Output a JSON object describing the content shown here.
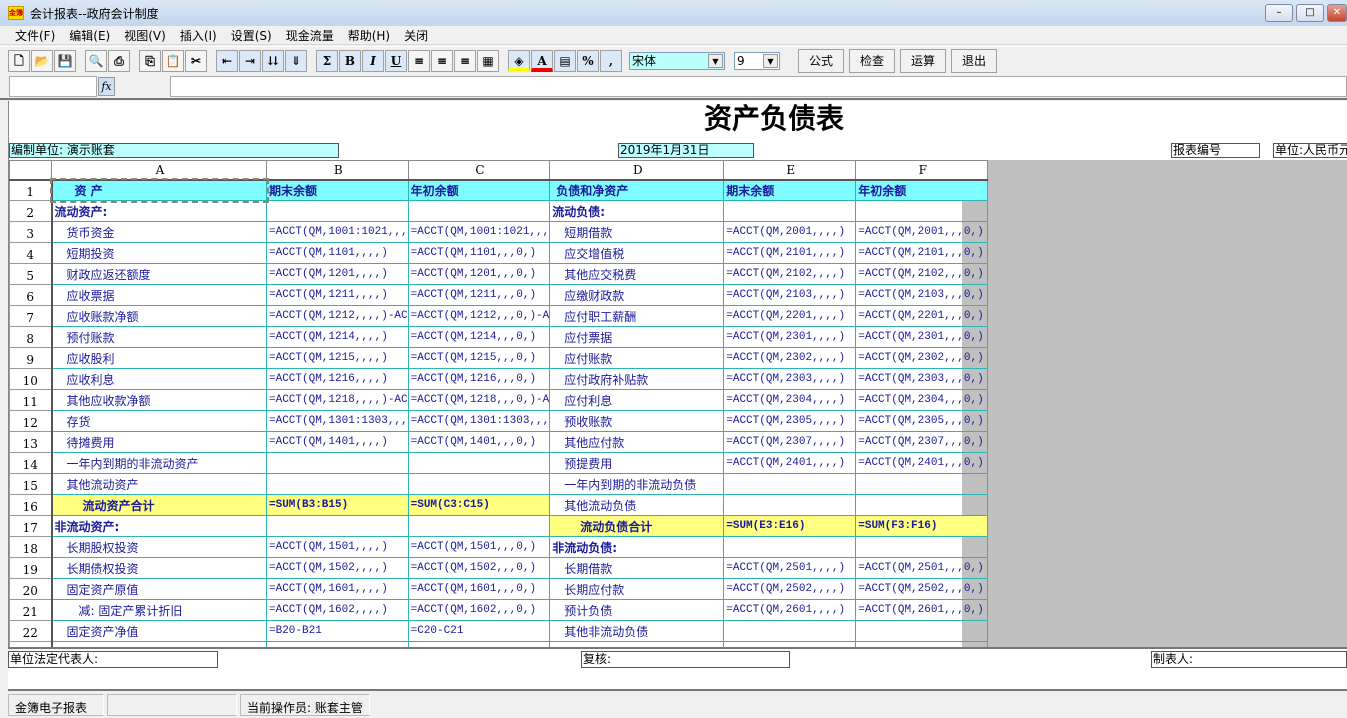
{
  "window": {
    "title": "会计报表--政府会计制度",
    "icon_text": "金簿",
    "controls": [
      "minimize",
      "maximize",
      "close"
    ]
  },
  "menu": [
    "文件(F)",
    "编辑(E)",
    "视图(V)",
    "插入(I)",
    "设置(S)",
    "现金流量",
    "帮助(H)",
    "关闭"
  ],
  "toolbar": {
    "icons": [
      "new-icon",
      "open-icon",
      "save-icon",
      "|",
      "print-preview-icon",
      "print-icon",
      "|",
      "copy-icon",
      "paste-icon",
      "cut-icon",
      "|",
      "insert-row-icon",
      "delete-row-icon",
      "insert-col-icon",
      "delete-col-icon",
      "|",
      "sum-icon",
      "bold-icon",
      "italic-icon",
      "underline-icon",
      "align-left-icon",
      "align-center-icon",
      "align-right-icon",
      "excel-icon",
      "|",
      "fill-color-icon",
      "font-color-icon",
      "border-icon",
      "percent-icon",
      "comma-icon"
    ],
    "glyphs": {
      "new-icon": "🗋",
      "open-icon": "📂",
      "save-icon": "💾",
      "print-preview-icon": "🔍",
      "print-icon": "⎙",
      "copy-icon": "⎘",
      "paste-icon": "📋",
      "cut-icon": "✂",
      "insert-row-icon": "⇤",
      "delete-row-icon": "⇥",
      "insert-col-icon": "⇊",
      "delete-col-icon": "⇓",
      "sum-icon": "Σ",
      "bold-icon": "B",
      "italic-icon": "I",
      "underline-icon": "U",
      "align-left-icon": "≡",
      "align-center-icon": "≡",
      "align-right-icon": "≡",
      "excel-icon": "▦",
      "fill-color-icon": "◈",
      "font-color-icon": "A",
      "border-icon": "▤",
      "percent-icon": "%",
      "comma-icon": ","
    },
    "font": "宋体",
    "size": "9",
    "buttons": [
      "公式",
      "检查",
      "运算",
      "退出"
    ]
  },
  "formula_bar": {
    "cell": "",
    "fx": "fx",
    "value": ""
  },
  "report": {
    "title": "资产负债表",
    "unit_org": "编制单位: 演示账套",
    "date": "2019年1月31日",
    "report_no": "报表编号",
    "currency": "单位:人民币元"
  },
  "columns": [
    "A",
    "B",
    "C",
    "D",
    "E",
    "F"
  ],
  "rows": [
    [
      "资  产",
      "期末余额",
      "年初余额",
      "负债和净资产",
      "期末余额",
      "年初余额"
    ],
    [
      "流动资产:",
      "",
      "",
      "流动负债:",
      "",
      ""
    ],
    [
      "货币资金",
      "=ACCT(QM,1001:1021,,,",
      "=ACCT(QM,1001:1021,,,",
      "短期借款",
      "=ACCT(QM,2001,,,,)",
      "=ACCT(QM,2001,,,0,)"
    ],
    [
      "短期投资",
      "=ACCT(QM,1101,,,,)",
      "=ACCT(QM,1101,,,0,)",
      "应交增值税",
      "=ACCT(QM,2101,,,,)",
      "=ACCT(QM,2101,,,0,)"
    ],
    [
      "财政应返还额度",
      "=ACCT(QM,1201,,,,)",
      "=ACCT(QM,1201,,,0,)",
      "其他应交税费",
      "=ACCT(QM,2102,,,,)",
      "=ACCT(QM,2102,,,0,)"
    ],
    [
      "应收票据",
      "=ACCT(QM,1211,,,,)",
      "=ACCT(QM,1211,,,0,)",
      "应缴财政款",
      "=ACCT(QM,2103,,,,)",
      "=ACCT(QM,2103,,,0,)"
    ],
    [
      "应收账款净额",
      "=ACCT(QM,1212,,,,)-AC",
      "=ACCT(QM,1212,,,0,)-A",
      "应付职工薪酬",
      "=ACCT(QM,2201,,,,)",
      "=ACCT(QM,2201,,,0,)"
    ],
    [
      "预付账款",
      "=ACCT(QM,1214,,,,)",
      "=ACCT(QM,1214,,,0,)",
      "应付票据",
      "=ACCT(QM,2301,,,,)",
      "=ACCT(QM,2301,,,0,)"
    ],
    [
      "应收股利",
      "=ACCT(QM,1215,,,,)",
      "=ACCT(QM,1215,,,0,)",
      "应付账款",
      "=ACCT(QM,2302,,,,)",
      "=ACCT(QM,2302,,,0,)"
    ],
    [
      "应收利息",
      "=ACCT(QM,1216,,,,)",
      "=ACCT(QM,1216,,,0,)",
      "应付政府补贴款",
      "=ACCT(QM,2303,,,,)",
      "=ACCT(QM,2303,,,0,)"
    ],
    [
      "其他应收款净额",
      "=ACCT(QM,1218,,,,)-AC",
      "=ACCT(QM,1218,,,0,)-A",
      "应付利息",
      "=ACCT(QM,2304,,,,)",
      "=ACCT(QM,2304,,,0,)"
    ],
    [
      "存货",
      "=ACCT(QM,1301:1303,,,",
      "=ACCT(QM,1301:1303,,,",
      "预收账款",
      "=ACCT(QM,2305,,,,)",
      "=ACCT(QM,2305,,,0,)"
    ],
    [
      "待摊费用",
      "=ACCT(QM,1401,,,,)",
      "=ACCT(QM,1401,,,0,)",
      "其他应付款",
      "=ACCT(QM,2307,,,,)",
      "=ACCT(QM,2307,,,0,)"
    ],
    [
      "一年内到期的非流动资产",
      "",
      "",
      "预提费用",
      "=ACCT(QM,2401,,,,)",
      "=ACCT(QM,2401,,,0,)"
    ],
    [
      "其他流动资产",
      "",
      "",
      "一年内到期的非流动负债",
      "",
      ""
    ],
    [
      "流动资产合计",
      "=SUM(B3:B15)",
      "=SUM(C3:C15)",
      "其他流动负债",
      "",
      ""
    ],
    [
      "非流动资产:",
      "",
      "",
      "流动负债合计",
      "=SUM(E3:E16)",
      "=SUM(F3:F16)"
    ],
    [
      "长期股权投资",
      "=ACCT(QM,1501,,,,)",
      "=ACCT(QM,1501,,,0,)",
      "非流动负债:",
      "",
      ""
    ],
    [
      "长期债权投资",
      "=ACCT(QM,1502,,,,)",
      "=ACCT(QM,1502,,,0,)",
      "长期借款",
      "=ACCT(QM,2501,,,,)",
      "=ACCT(QM,2501,,,0,)"
    ],
    [
      "固定资产原值",
      "=ACCT(QM,1601,,,,)",
      "=ACCT(QM,1601,,,0,)",
      "长期应付款",
      "=ACCT(QM,2502,,,,)",
      "=ACCT(QM,2502,,,0,)"
    ],
    [
      "减: 固定产累计折旧",
      "=ACCT(QM,1602,,,,)",
      "=ACCT(QM,1602,,,0,)",
      "预计负债",
      "=ACCT(QM,2601,,,,)",
      "=ACCT(QM,2601,,,0,)"
    ],
    [
      "固定资产净值",
      "=B20-B21",
      "=C20-C21",
      "其他非流动负债",
      "",
      ""
    ]
  ],
  "footer": {
    "legal_rep": "单位法定代表人:",
    "review": "复核:",
    "preparer": "制表人:"
  },
  "status": {
    "app": "金簿电子报表",
    "blank": "",
    "operator": "当前操作员: 账套主管"
  }
}
